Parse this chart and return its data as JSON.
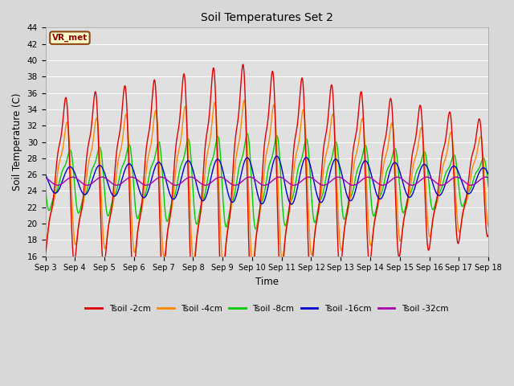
{
  "title": "Soil Temperatures Set 2",
  "xlabel": "Time",
  "ylabel": "Soil Temperature (C)",
  "ylim": [
    16,
    44
  ],
  "yticks": [
    16,
    18,
    20,
    22,
    24,
    26,
    28,
    30,
    32,
    34,
    36,
    38,
    40,
    42,
    44
  ],
  "annotation": "VR_met",
  "fig_bg_color": "#d8d8d8",
  "plot_bg_color": "#e0e0e0",
  "grid_color": "#ffffff",
  "series_colors": {
    "2cm": "#dd0000",
    "4cm": "#ff8800",
    "8cm": "#00cc00",
    "16cm": "#0000cc",
    "32cm": "#aa00aa"
  },
  "xtick_days": [
    3,
    4,
    5,
    6,
    7,
    8,
    9,
    10,
    11,
    12,
    13,
    14,
    15,
    16,
    17,
    18
  ]
}
